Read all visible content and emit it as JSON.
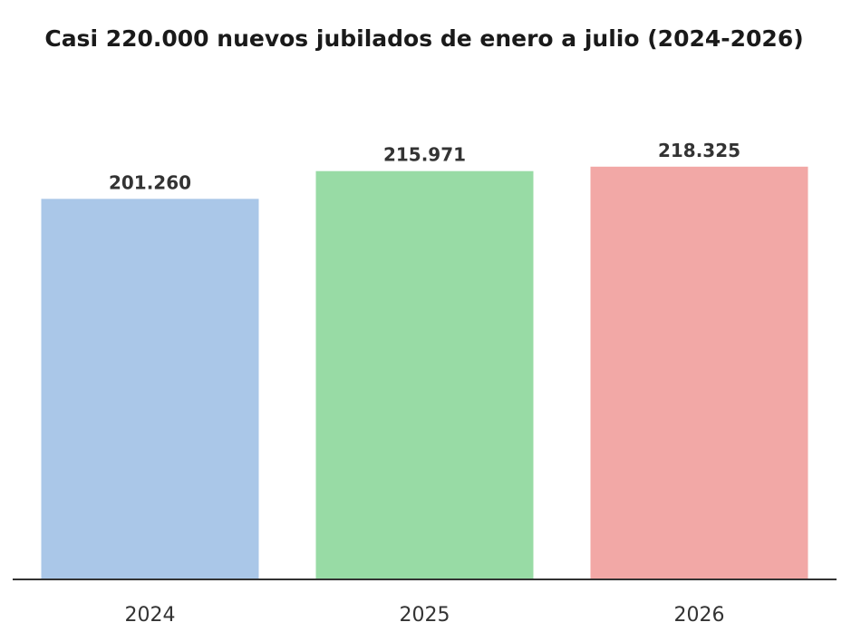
{
  "chart_data": {
    "type": "bar",
    "title": "Casi 220.000 nuevos jubilados de enero a julio (2024-2026)",
    "xlabel": "",
    "ylabel": "",
    "categories": [
      "2024",
      "2025",
      "2026"
    ],
    "values": [
      201260,
      215971,
      218325
    ],
    "value_labels": [
      "201.260",
      "215.971",
      "218.325"
    ],
    "colors": [
      "#aac7e8",
      "#98dba5",
      "#f2a8a6"
    ],
    "ylim": [
      0,
      230000
    ],
    "grid": false,
    "legend": "none"
  }
}
